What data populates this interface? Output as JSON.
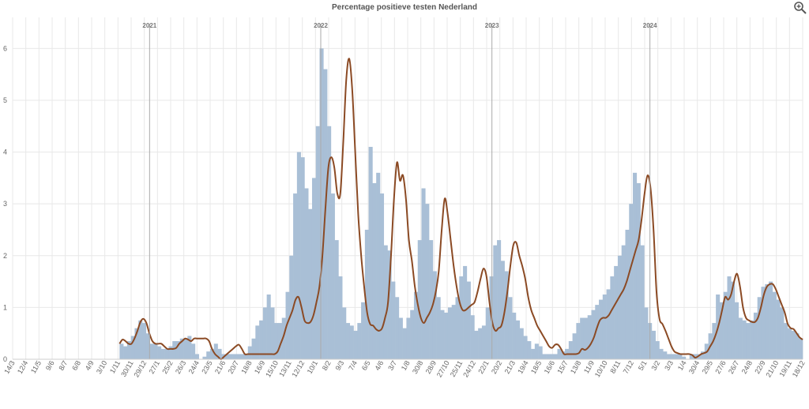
{
  "chart_data": {
    "type": "bar",
    "title": "Percentage positieve testen Nederland",
    "xlabel": "",
    "ylabel": "",
    "ylim": [
      0,
      6.6
    ],
    "y_ticks": [
      "0",
      "1",
      "2",
      "3",
      "4",
      "5",
      "6"
    ],
    "x_tick_labels": [
      "14/3",
      "12/4",
      "11/5",
      "9/6",
      "8/7",
      "6/8",
      "4/9",
      "3/10",
      "1/11",
      "30/11",
      "29/12",
      "27/1",
      "25/2",
      "26/3",
      "24/4",
      "23/5",
      "21/6",
      "20/7",
      "18/8",
      "16/9",
      "15/10",
      "13/11",
      "12/12",
      "10/1",
      "8/2",
      "9/3",
      "7/4",
      "6/5",
      "4/6",
      "3/7",
      "1/8",
      "30/8",
      "28/9",
      "27/10",
      "25/11",
      "24/12",
      "22/1",
      "20/2",
      "21/3",
      "19/4",
      "18/5",
      "16/6",
      "15/7",
      "13/8",
      "11/9",
      "10/10",
      "8/11",
      "7/12",
      "5/1",
      "3/2",
      "3/3",
      "1/4",
      "30/4",
      "29/5",
      "27/6",
      "26/7",
      "24/8",
      "22/9",
      "21/10",
      "19/11",
      "18/12"
    ],
    "year_markers": [
      {
        "label": "2021",
        "after_tick": 10
      },
      {
        "label": "2022",
        "after_tick": 23
      },
      {
        "label": "2023",
        "after_tick": 36
      },
      {
        "label": "2024",
        "after_tick": 48
      }
    ],
    "data_start_tick": 8,
    "series": [
      {
        "kind": "daily-bars",
        "color": "#a9bfd6",
        "values": [
          0.3,
          0.25,
          0.35,
          0.45,
          0.6,
          0.75,
          0.7,
          0.5,
          0.3,
          0.3,
          0.25,
          0.2,
          0.2,
          0.25,
          0.35,
          0.35,
          0.4,
          0.4,
          0.45,
          0.3,
          0.1,
          0.0,
          0.05,
          0.15,
          0.2,
          0.3,
          0.2,
          0.1,
          0.1,
          0.1,
          0.1,
          0.1,
          0.1,
          0.1,
          0.25,
          0.4,
          0.65,
          0.75,
          1.0,
          1.25,
          1.0,
          0.7,
          0.7,
          0.8,
          1.3,
          2.0,
          3.2,
          4.0,
          3.9,
          3.3,
          2.9,
          3.5,
          4.5,
          6.0,
          5.6,
          4.5,
          3.2,
          2.3,
          1.6,
          1.0,
          0.7,
          0.65,
          0.55,
          0.7,
          1.1,
          2.5,
          4.1,
          3.4,
          3.6,
          3.2,
          2.2,
          2.1,
          1.5,
          1.2,
          0.8,
          0.6,
          0.8,
          0.95,
          1.3,
          2.3,
          3.3,
          3.0,
          2.3,
          1.7,
          1.2,
          0.95,
          0.9,
          1.0,
          1.05,
          1.2,
          1.6,
          1.8,
          1.5,
          0.85,
          0.55,
          0.6,
          0.65,
          1.0,
          1.6,
          2.2,
          2.3,
          1.9,
          1.7,
          1.2,
          0.9,
          0.75,
          0.6,
          0.45,
          0.35,
          0.2,
          0.3,
          0.25,
          0.1,
          0.1,
          0.1,
          0.1,
          0.2,
          0.15,
          0.2,
          0.35,
          0.5,
          0.7,
          0.8,
          0.8,
          0.85,
          0.95,
          1.05,
          1.15,
          1.25,
          1.35,
          1.6,
          1.8,
          2.0,
          2.2,
          2.5,
          3.0,
          3.6,
          3.4,
          2.2,
          1.0,
          0.7,
          0.55,
          0.35,
          0.2,
          0.15,
          0.1,
          0.1,
          0.1,
          0.1,
          0.05,
          0.0,
          0.1,
          0.1,
          0.1,
          0.15,
          0.3,
          0.5,
          0.7,
          1.25,
          1.1,
          1.3,
          1.6,
          1.5,
          1.1,
          0.8,
          0.75,
          0.7,
          0.75,
          0.9,
          1.2,
          1.4,
          1.45,
          1.5,
          1.3,
          1.15,
          1.0,
          0.7,
          0.6,
          0.55,
          0.5,
          0.4
        ]
      },
      {
        "kind": "smoothed-line",
        "color": "#8b4a24",
        "values": [
          0.3,
          0.38,
          0.35,
          0.3,
          0.3,
          0.4,
          0.55,
          0.72,
          0.78,
          0.7,
          0.5,
          0.35,
          0.3,
          0.3,
          0.3,
          0.25,
          0.2,
          0.2,
          0.2,
          0.22,
          0.3,
          0.35,
          0.4,
          0.38,
          0.35,
          0.4,
          0.4,
          0.4,
          0.4,
          0.4,
          0.35,
          0.2,
          0.1,
          0.05,
          0.0,
          0.05,
          0.1,
          0.15,
          0.2,
          0.25,
          0.28,
          0.2,
          0.1,
          0.1,
          0.1,
          0.1,
          0.1,
          0.1,
          0.1,
          0.1,
          0.1,
          0.1,
          0.1,
          0.15,
          0.3,
          0.45,
          0.65,
          0.8,
          0.95,
          1.15,
          1.2,
          1.0,
          0.75,
          0.7,
          0.72,
          0.85,
          1.1,
          1.4,
          2.0,
          2.9,
          3.7,
          3.9,
          3.7,
          3.2,
          3.2,
          4.2,
          5.4,
          5.8,
          5.2,
          4.0,
          2.8,
          2.0,
          1.4,
          0.9,
          0.68,
          0.65,
          0.58,
          0.55,
          0.6,
          0.8,
          1.1,
          2.0,
          3.1,
          3.8,
          3.45,
          3.55,
          3.1,
          2.3,
          1.9,
          1.4,
          1.05,
          0.8,
          0.7,
          0.8,
          0.9,
          1.05,
          1.3,
          1.7,
          2.5,
          3.1,
          2.8,
          2.3,
          1.8,
          1.4,
          1.1,
          0.95,
          0.95,
          1.0,
          1.05,
          1.1,
          1.3,
          1.55,
          1.75,
          1.6,
          1.1,
          0.7,
          0.55,
          0.6,
          0.65,
          0.9,
          1.3,
          1.8,
          2.2,
          2.25,
          2.0,
          1.8,
          1.55,
          1.2,
          0.95,
          0.8,
          0.65,
          0.55,
          0.45,
          0.35,
          0.25,
          0.22,
          0.28,
          0.28,
          0.2,
          0.1,
          0.1,
          0.1,
          0.1,
          0.1,
          0.12,
          0.2,
          0.18,
          0.22,
          0.3,
          0.42,
          0.6,
          0.75,
          0.8,
          0.8,
          0.85,
          0.95,
          1.05,
          1.15,
          1.25,
          1.35,
          1.5,
          1.7,
          1.9,
          2.1,
          2.3,
          2.7,
          3.2,
          3.55,
          3.3,
          2.5,
          1.3,
          0.78,
          0.68,
          0.55,
          0.4,
          0.25,
          0.15,
          0.12,
          0.1,
          0.1,
          0.1,
          0.1,
          0.08,
          0.03,
          0.06,
          0.1,
          0.12,
          0.15,
          0.25,
          0.35,
          0.5,
          0.7,
          0.95,
          1.2,
          1.15,
          1.25,
          1.5,
          1.65,
          1.4,
          1.0,
          0.8,
          0.75,
          0.72,
          0.72,
          0.8,
          1.0,
          1.25,
          1.4,
          1.45,
          1.45,
          1.35,
          1.2,
          1.05,
          0.9,
          0.68,
          0.6,
          0.58,
          0.5,
          0.42,
          0.38
        ]
      }
    ],
    "colors": {
      "bars": "#a9bfd6",
      "line": "#8b4a24",
      "grid": "#e8e8e8",
      "year_line": "#aaaaaa",
      "axis": "#cccccc"
    }
  },
  "toolbar": {
    "zoom_icon": "zoom-in-icon"
  }
}
